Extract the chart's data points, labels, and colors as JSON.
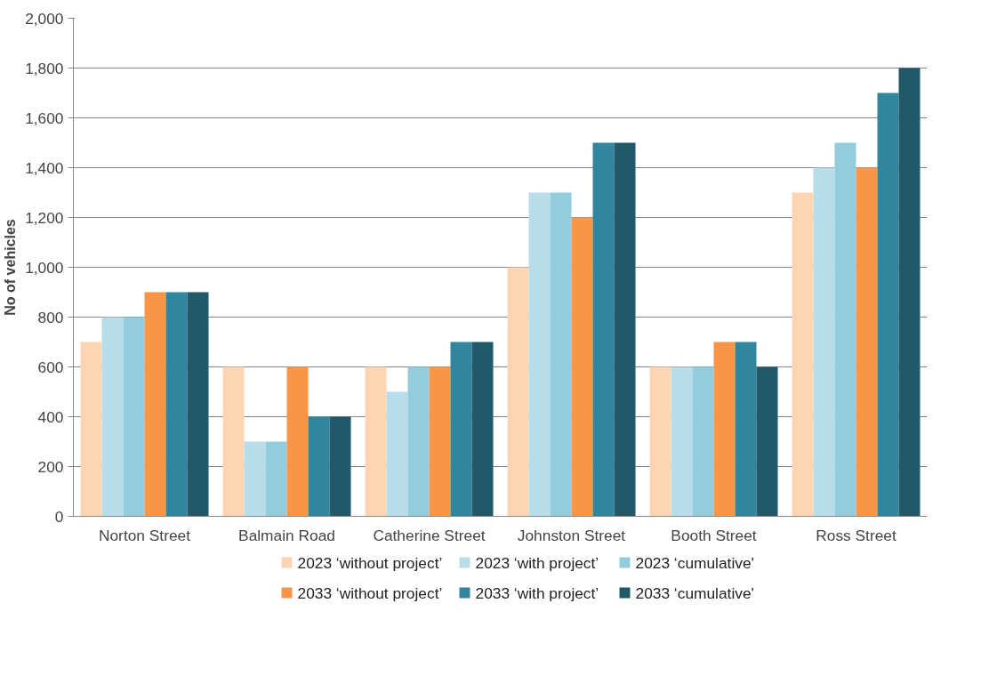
{
  "chart_data": {
    "type": "bar",
    "ylabel": "No of vehicles",
    "categories": [
      "Norton Street",
      "Balmain Road",
      "Catherine Street",
      "Johnston Street",
      "Booth Street",
      "Ross Street"
    ],
    "series": [
      {
        "name": "2023 ‘without project’",
        "color": "#fcd5b5",
        "values": [
          700,
          600,
          600,
          1000,
          600,
          1300
        ]
      },
      {
        "name": "2023 ‘with project’",
        "color": "#b7dee8",
        "values": [
          800,
          300,
          500,
          1300,
          600,
          1400
        ]
      },
      {
        "name": "2023 ‘cumulative'",
        "color": "#93cddd",
        "values": [
          800,
          300,
          600,
          1300,
          600,
          1500
        ]
      },
      {
        "name": "2033 ‘without project’",
        "color": "#f79646",
        "values": [
          900,
          600,
          600,
          1200,
          700,
          1400
        ]
      },
      {
        "name": "2033 ‘with project’",
        "color": "#31859c",
        "values": [
          900,
          400,
          700,
          1500,
          700,
          1700
        ]
      },
      {
        "name": "2033 ‘cumulative'",
        "color": "#215968",
        "values": [
          900,
          400,
          700,
          1500,
          600,
          1800
        ]
      }
    ],
    "ylim": [
      0,
      2000
    ],
    "yticks": [
      {
        "value": 0,
        "label": "0"
      },
      {
        "value": 200,
        "label": "200"
      },
      {
        "value": 400,
        "label": "400"
      },
      {
        "value": 600,
        "label": "600"
      },
      {
        "value": 800,
        "label": "800"
      },
      {
        "value": 1000,
        "label": "1,000"
      },
      {
        "value": 1200,
        "label": "1,200"
      },
      {
        "value": 1400,
        "label": "1,400"
      },
      {
        "value": 1600,
        "label": "1,600"
      },
      {
        "value": 1800,
        "label": "1,800"
      },
      {
        "value": 2000,
        "label": "2,000"
      }
    ],
    "grid": "y",
    "legend": "bottom"
  }
}
